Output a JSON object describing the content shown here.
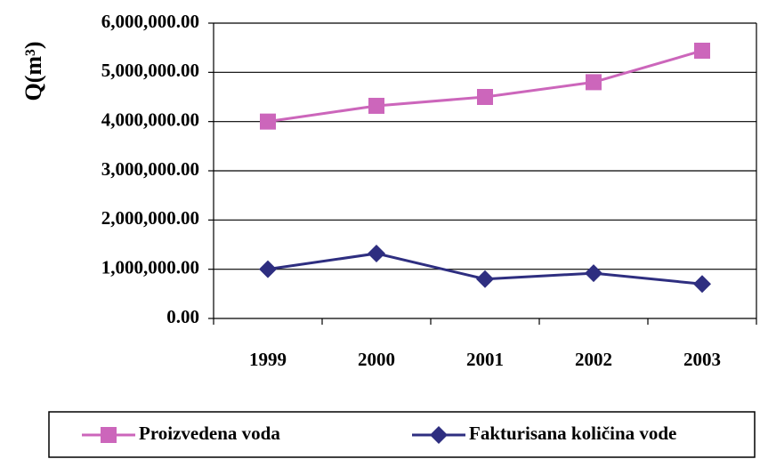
{
  "chart_data": {
    "type": "line",
    "y_label": "Q(m³)",
    "categories": [
      "1999",
      "2000",
      "2001",
      "2002",
      "2003"
    ],
    "series": [
      {
        "name": "Proizvedena voda",
        "color": "#cc66bb",
        "marker": "square",
        "values": [
          4000000,
          4320000,
          4500000,
          4800000,
          5440000
        ]
      },
      {
        "name": "Fakturisana količina vode",
        "color": "#2e2e80",
        "marker": "diamond",
        "values": [
          1000000,
          1320000,
          800000,
          920000,
          700000
        ]
      }
    ],
    "ylim": [
      0,
      6000000
    ],
    "yticks": [
      {
        "value": 0,
        "label": "0.00"
      },
      {
        "value": 1000000,
        "label": "1,000,000.00"
      },
      {
        "value": 2000000,
        "label": "2,000,000.00"
      },
      {
        "value": 3000000,
        "label": "3,000,000.00"
      },
      {
        "value": 4000000,
        "label": "4,000,000.00"
      },
      {
        "value": 5000000,
        "label": "5,000,000.00"
      },
      {
        "value": 6000000,
        "label": "6,000,000.00"
      }
    ],
    "grid": true,
    "legend": "bottom"
  }
}
